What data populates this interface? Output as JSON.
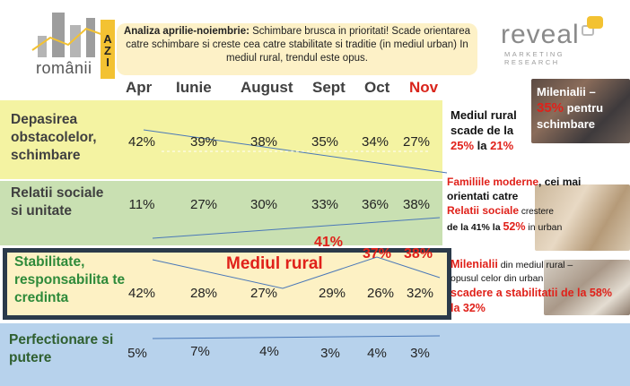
{
  "logo": {
    "word": "românii",
    "badge": "AZI"
  },
  "note": {
    "bold": "Analiza aprilie-noiembrie:",
    "text": " Schimbare brusca in prioritati! Scade orientarea catre schimbare si creste cea catre stabilitate si traditie (in mediul urban) In mediul rural, trendul este opus."
  },
  "brand": {
    "name": "reveal",
    "line1": "MARKETING",
    "line2": "RESEARCH"
  },
  "columns": [
    "Apr",
    "Iunie",
    "August",
    "Sept",
    "Oct",
    "Nov"
  ],
  "rows": [
    {
      "label": "Depasirea obstacolelor, schimbare",
      "values": [
        "42%",
        "39%",
        "38%",
        "35%",
        "34%",
        "27%"
      ]
    },
    {
      "label": "Relatii sociale si unitate",
      "values": [
        "11%",
        "27%",
        "30%",
        "33%",
        "36%",
        "38%"
      ]
    },
    {
      "label": "Stabilitate, responsabilita te credinta",
      "values": [
        "42%",
        "28%",
        "27%",
        "29%",
        "26%",
        "32%"
      ]
    },
    {
      "label": "Perfectionare si putere",
      "values": [
        "5%",
        "7%",
        "4%",
        "3%",
        "4%",
        "3%"
      ]
    }
  ],
  "rural": {
    "label": "Mediul rural",
    "v_sept": "41%",
    "v_oct": "37%",
    "v_nov": "38%"
  },
  "annotations": {
    "a1_l1": "Mediul rural",
    "a1_l2": "scade de la",
    "a1_from": "25%",
    "a1_mid": " la ",
    "a1_to": "21%",
    "mil_title": "Milenialii –",
    "mil_pct": "35%",
    "mil_rest": " pentru schimbare",
    "a2_l1": "Familiile moderne",
    "a2_l1b": ", cei mai orientati catre",
    "a2_l2": "Relatii sociale",
    "a2_l2b": " crestere",
    "a2_l3a": "de la 41% la ",
    "a2_l3b": "52%",
    "a2_l3c": " in urban",
    "a3_l1": "Milenialii",
    "a3_l1b": " din mediul rural –",
    "a3_l2": "opusul celor din urban",
    "a3_l3": "scadere a stabilitatii de la 58% la 32%"
  },
  "colors": {
    "row1": "#f4f3a2",
    "row2": "#c9e0b2",
    "row3": "#fdf1c4",
    "row4": "#b7d2ec",
    "accent": "#e0211a",
    "frame": "#2b3a4a"
  }
}
